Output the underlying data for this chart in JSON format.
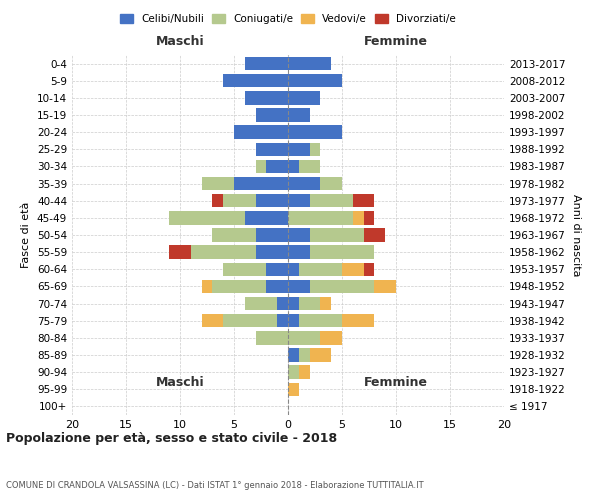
{
  "age_groups": [
    "100+",
    "95-99",
    "90-94",
    "85-89",
    "80-84",
    "75-79",
    "70-74",
    "65-69",
    "60-64",
    "55-59",
    "50-54",
    "45-49",
    "40-44",
    "35-39",
    "30-34",
    "25-29",
    "20-24",
    "15-19",
    "10-14",
    "5-9",
    "0-4"
  ],
  "birth_years": [
    "≤ 1917",
    "1918-1922",
    "1923-1927",
    "1928-1932",
    "1933-1937",
    "1938-1942",
    "1943-1947",
    "1948-1952",
    "1953-1957",
    "1958-1962",
    "1963-1967",
    "1968-1972",
    "1973-1977",
    "1978-1982",
    "1983-1987",
    "1988-1992",
    "1993-1997",
    "1998-2002",
    "2003-2007",
    "2008-2012",
    "2013-2017"
  ],
  "male": {
    "celibi": [
      0,
      0,
      0,
      0,
      0,
      1,
      1,
      2,
      2,
      3,
      3,
      4,
      3,
      5,
      2,
      3,
      5,
      3,
      4,
      6,
      4
    ],
    "coniugati": [
      0,
      0,
      0,
      0,
      3,
      5,
      3,
      5,
      4,
      6,
      4,
      7,
      3,
      3,
      1,
      0,
      0,
      0,
      0,
      0,
      0
    ],
    "vedovi": [
      0,
      0,
      0,
      0,
      0,
      2,
      0,
      1,
      0,
      0,
      0,
      0,
      0,
      0,
      0,
      0,
      0,
      0,
      0,
      0,
      0
    ],
    "divorziati": [
      0,
      0,
      0,
      0,
      0,
      0,
      0,
      0,
      0,
      2,
      0,
      0,
      1,
      0,
      0,
      0,
      0,
      0,
      0,
      0,
      0
    ]
  },
  "female": {
    "nubili": [
      0,
      0,
      0,
      1,
      0,
      1,
      1,
      2,
      1,
      2,
      2,
      0,
      2,
      3,
      1,
      2,
      5,
      2,
      3,
      5,
      4
    ],
    "coniugate": [
      0,
      0,
      1,
      1,
      3,
      4,
      2,
      6,
      4,
      6,
      5,
      6,
      4,
      2,
      2,
      1,
      0,
      0,
      0,
      0,
      0
    ],
    "vedove": [
      0,
      1,
      1,
      2,
      2,
      3,
      1,
      2,
      2,
      0,
      0,
      1,
      0,
      0,
      0,
      0,
      0,
      0,
      0,
      0,
      0
    ],
    "divorziate": [
      0,
      0,
      0,
      0,
      0,
      0,
      0,
      0,
      1,
      0,
      2,
      1,
      2,
      0,
      0,
      0,
      0,
      0,
      0,
      0,
      0
    ]
  },
  "colors": {
    "celibi_nubili": "#4472c4",
    "coniugati": "#b5c98e",
    "vedovi": "#f0b450",
    "divorziati": "#c0392b"
  },
  "xlim": [
    -20,
    20
  ],
  "xticks": [
    -20,
    -15,
    -10,
    -5,
    0,
    5,
    10,
    15,
    20
  ],
  "xticklabels": [
    "20",
    "15",
    "10",
    "5",
    "0",
    "5",
    "10",
    "15",
    "20"
  ],
  "title_main": "Popolazione per età, sesso e stato civile - 2018",
  "title_sub": "COMUNE DI CRANDOLA VALSASSINA (LC) - Dati ISTAT 1° gennaio 2018 - Elaborazione TUTTITALIA.IT",
  "label_maschi": "Maschi",
  "label_femmine": "Femmine",
  "ylabel": "Fasce di età",
  "ylabel_right": "Anni di nascita",
  "legend_labels": [
    "Celibi/Nubili",
    "Coniugati/e",
    "Vedovi/e",
    "Divorziati/e"
  ],
  "background_color": "#ffffff",
  "grid_color": "#cccccc"
}
